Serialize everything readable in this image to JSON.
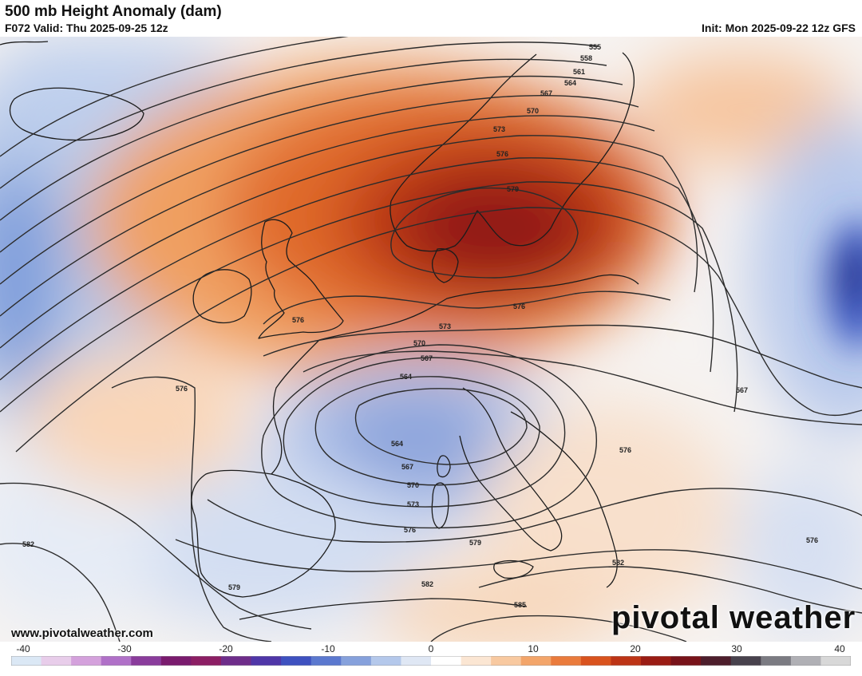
{
  "header": {
    "title": "500 mb Height Anomaly (dam)",
    "valid": "F072 Valid: Thu 2025-09-25 12z",
    "init": "Init: Mon 2025-09-22 12z GFS"
  },
  "footer": {
    "website": "www.pivotalweather.com",
    "brand": "pivotal weather"
  },
  "map": {
    "contour_labels": [
      {
        "label": "555"
      },
      {
        "label": "558"
      },
      {
        "label": "561"
      },
      {
        "label": "564"
      },
      {
        "label": "567"
      },
      {
        "label": "570"
      },
      {
        "label": "573"
      },
      {
        "label": "576"
      },
      {
        "label": "579"
      },
      {
        "label": "576"
      },
      {
        "label": "576"
      },
      {
        "label": "573"
      },
      {
        "label": "570"
      },
      {
        "label": "567"
      },
      {
        "label": "564"
      },
      {
        "label": "564"
      },
      {
        "label": "567"
      },
      {
        "label": "570"
      },
      {
        "label": "573"
      },
      {
        "label": "576"
      },
      {
        "label": "576"
      },
      {
        "label": "582"
      },
      {
        "label": "579"
      },
      {
        "label": "579"
      },
      {
        "label": "582"
      },
      {
        "label": "585"
      },
      {
        "label": "576"
      },
      {
        "label": "567"
      },
      {
        "label": "582"
      },
      {
        "label": "576"
      }
    ]
  },
  "colorbar": {
    "ticks": [
      "-40",
      "-30",
      "-20",
      "-10",
      "0",
      "10",
      "20",
      "30",
      "40"
    ],
    "colors": [
      "#dbe8f5",
      "#e8cdea",
      "#d4a1dc",
      "#b070c8",
      "#8a3c9c",
      "#7a1b6e",
      "#8c1e64",
      "#6e2d8a",
      "#4f36a8",
      "#3e51c0",
      "#5b78cf",
      "#86a1dc",
      "#b4c8eb",
      "#dfe7f4",
      "#ffffff",
      "#fbe6d3",
      "#f8c9a0",
      "#f3a56a",
      "#ea7b3c",
      "#d9531e",
      "#bd3416",
      "#9a1c14",
      "#78131a",
      "#4d1e2c",
      "#48424d",
      "#7b7b82",
      "#b0b0b5",
      "#d8d8d8"
    ]
  }
}
